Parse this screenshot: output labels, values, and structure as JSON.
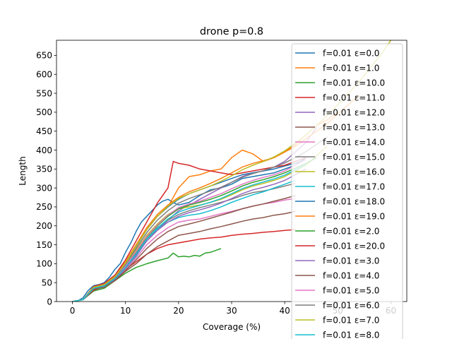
{
  "chart_data": {
    "type": "line",
    "title": "drone p=0.8",
    "xlabel": "Coverage (%)",
    "ylabel": "Length",
    "xlim": [
      -3,
      63
    ],
    "ylim": [
      0,
      690
    ],
    "xticks": [
      0,
      10,
      20,
      30,
      40,
      50,
      60
    ],
    "yticks": [
      0,
      50,
      100,
      150,
      200,
      250,
      300,
      350,
      400,
      450,
      500,
      550,
      600,
      650
    ],
    "grid": false,
    "legend_position": "upper right",
    "series": [
      {
        "name": "f=0.01 ε=0.0",
        "color": "#1f77b4",
        "x": [
          0,
          1,
          2,
          3,
          4,
          5,
          6,
          7,
          8,
          9,
          10,
          11,
          12,
          13,
          14,
          15,
          16,
          17,
          18,
          19,
          20,
          22,
          24,
          26,
          28,
          30,
          32,
          34,
          36,
          38,
          40,
          42,
          44
        ],
        "y": [
          0,
          2,
          10,
          30,
          42,
          45,
          50,
          65,
          85,
          100,
          130,
          155,
          185,
          210,
          225,
          240,
          255,
          265,
          270,
          262,
          255,
          262,
          280,
          295,
          300,
          310,
          325,
          330,
          335,
          340,
          350,
          360,
          380
        ]
      },
      {
        "name": "f=0.01 ε=1.0",
        "color": "#ff7f0e",
        "x": [
          0,
          2,
          4,
          6,
          8,
          10,
          12,
          14,
          16,
          18,
          20,
          22,
          24,
          26,
          28,
          30,
          32,
          34,
          36,
          38,
          40,
          42,
          44,
          46,
          48,
          50
        ],
        "y": [
          0,
          5,
          40,
          45,
          65,
          95,
          150,
          190,
          225,
          250,
          300,
          330,
          335,
          345,
          350,
          380,
          400,
          390,
          370,
          380,
          395,
          415,
          440,
          465,
          480,
          500
        ]
      },
      {
        "name": "f=0.01 ε=10.0",
        "color": "#2ca02c",
        "x": [
          0,
          2,
          4,
          6,
          8,
          10,
          12,
          14,
          16,
          18,
          19,
          20,
          21,
          22,
          23,
          24,
          25,
          26,
          27,
          28
        ],
        "y": [
          0,
          5,
          28,
          35,
          55,
          75,
          90,
          100,
          108,
          115,
          128,
          118,
          120,
          118,
          122,
          120,
          128,
          130,
          135,
          140
        ]
      },
      {
        "name": "f=0.01 ε=11.0",
        "color": "#d62728",
        "x": [
          0,
          2,
          4,
          6,
          8,
          10,
          12,
          14,
          16,
          18,
          20,
          22,
          24,
          26,
          28,
          30,
          32,
          34,
          36,
          38,
          40,
          42
        ],
        "y": [
          0,
          5,
          30,
          40,
          60,
          85,
          105,
          125,
          140,
          150,
          155,
          160,
          165,
          168,
          170,
          175,
          178,
          180,
          183,
          185,
          188,
          190
        ]
      },
      {
        "name": "f=0.01 ε=12.0",
        "color": "#9467bd",
        "x": [
          0,
          2,
          4,
          6,
          8,
          10,
          12,
          14,
          16,
          18,
          20,
          22,
          24,
          26,
          28,
          30,
          32,
          34,
          36,
          38,
          40,
          42,
          44,
          46
        ],
        "y": [
          0,
          5,
          38,
          42,
          60,
          90,
          130,
          165,
          190,
          215,
          240,
          255,
          270,
          285,
          300,
          315,
          330,
          340,
          345,
          355,
          370,
          395,
          420,
          460
        ]
      },
      {
        "name": "f=0.01 ε=13.0",
        "color": "#8c564b",
        "x": [
          0,
          2,
          4,
          6,
          8,
          10,
          12,
          14,
          16,
          18,
          20,
          22,
          24,
          26,
          28,
          30,
          32,
          34,
          36,
          38,
          40,
          42
        ],
        "y": [
          0,
          5,
          32,
          38,
          55,
          80,
          100,
          125,
          145,
          160,
          175,
          180,
          185,
          192,
          198,
          205,
          212,
          218,
          222,
          228,
          232,
          238
        ]
      },
      {
        "name": "f=0.01 ε=14.0",
        "color": "#e377c2",
        "x": [
          0,
          2,
          4,
          6,
          8,
          10,
          12,
          14,
          16,
          18,
          20,
          22,
          24,
          26,
          28,
          30,
          32,
          34,
          36,
          38,
          40,
          42
        ],
        "y": [
          0,
          5,
          33,
          40,
          58,
          85,
          115,
          150,
          175,
          195,
          210,
          215,
          218,
          225,
          232,
          238,
          245,
          252,
          258,
          262,
          268,
          272
        ]
      },
      {
        "name": "f=0.01 ε=15.0",
        "color": "#7f7f7f",
        "x": [
          0,
          2,
          4,
          6,
          8,
          10,
          12,
          14,
          16,
          18,
          20,
          22,
          24,
          26,
          28,
          30,
          32,
          34,
          36,
          38,
          40,
          42
        ],
        "y": [
          0,
          5,
          35,
          40,
          60,
          90,
          125,
          165,
          195,
          215,
          230,
          240,
          248,
          255,
          262,
          270,
          280,
          288,
          292,
          298,
          305,
          312
        ]
      },
      {
        "name": "f=0.01 ε=16.0",
        "color": "#bcbd22",
        "x": [
          0,
          2,
          4,
          6,
          8,
          10,
          12,
          14,
          16,
          18,
          20,
          22,
          24,
          26,
          28,
          30,
          32,
          34,
          36,
          38,
          40,
          42,
          44,
          46,
          48
        ],
        "y": [
          0,
          5,
          36,
          42,
          62,
          95,
          135,
          175,
          205,
          230,
          245,
          250,
          255,
          262,
          270,
          282,
          295,
          305,
          312,
          320,
          330,
          345,
          360,
          385,
          410
        ]
      },
      {
        "name": "f=0.01 ε=17.0",
        "color": "#17becf",
        "x": [
          0,
          2,
          4,
          6,
          8,
          10,
          12,
          14,
          16,
          18,
          20,
          22,
          24,
          26,
          28,
          30,
          32,
          34,
          36,
          38,
          40,
          42
        ],
        "y": [
          0,
          5,
          34,
          40,
          60,
          88,
          120,
          160,
          190,
          210,
          222,
          228,
          232,
          240,
          250,
          262,
          272,
          282,
          290,
          300,
          310,
          320
        ]
      },
      {
        "name": "f=0.01 ε=18.0",
        "color": "#1f77b4",
        "x": [
          0,
          2,
          4,
          6,
          8,
          10,
          12,
          14,
          16,
          18,
          20,
          22,
          24,
          26,
          28,
          30,
          32,
          34,
          36,
          38,
          40,
          42,
          44
        ],
        "y": [
          0,
          5,
          38,
          45,
          65,
          100,
          145,
          190,
          225,
          250,
          270,
          285,
          295,
          305,
          315,
          325,
          335,
          340,
          345,
          350,
          358,
          365,
          375
        ]
      },
      {
        "name": "f=0.01 ε=19.0",
        "color": "#ff7f0e",
        "x": [
          0,
          2,
          4,
          6,
          8,
          10,
          12,
          14,
          16,
          18,
          20,
          22,
          24,
          26,
          28,
          30,
          32,
          34,
          36,
          38,
          40,
          42,
          44,
          46,
          48,
          50,
          52,
          54
        ],
        "y": [
          0,
          5,
          40,
          46,
          68,
          105,
          150,
          195,
          230,
          255,
          275,
          290,
          300,
          312,
          325,
          340,
          355,
          365,
          372,
          380,
          395,
          410,
          430,
          450,
          470,
          495,
          520,
          545
        ]
      },
      {
        "name": "f=0.01 ε=2.0",
        "color": "#2ca02c",
        "x": [
          0,
          2,
          4,
          6,
          8,
          10,
          12,
          14,
          16,
          18,
          20,
          22,
          24,
          26,
          28,
          30,
          32,
          34,
          36,
          38,
          40,
          42,
          44,
          46
        ],
        "y": [
          0,
          5,
          36,
          42,
          62,
          92,
          130,
          170,
          200,
          225,
          245,
          255,
          262,
          270,
          280,
          292,
          305,
          315,
          322,
          330,
          340,
          352,
          365,
          380
        ]
      },
      {
        "name": "f=0.01 ε=20.0",
        "color": "#d62728",
        "x": [
          0,
          2,
          4,
          6,
          8,
          10,
          12,
          14,
          16,
          18,
          19,
          20,
          22,
          24,
          26,
          28,
          30,
          32,
          34,
          36,
          38,
          40,
          42,
          44
        ],
        "y": [
          0,
          5,
          40,
          48,
          70,
          110,
          160,
          210,
          260,
          300,
          370,
          365,
          360,
          350,
          345,
          340,
          335,
          340,
          345,
          350,
          355,
          360,
          370,
          380
        ]
      },
      {
        "name": "f=0.01 ε=3.0",
        "color": "#9467bd",
        "x": [
          0,
          2,
          4,
          6,
          8,
          10,
          12,
          14,
          16,
          18,
          20,
          22,
          24,
          26,
          28,
          30,
          32,
          34,
          36,
          38,
          40,
          42,
          44
        ],
        "y": [
          0,
          5,
          35,
          40,
          58,
          88,
          122,
          160,
          188,
          210,
          225,
          235,
          242,
          250,
          260,
          272,
          285,
          295,
          302,
          310,
          320,
          335,
          350
        ]
      },
      {
        "name": "f=0.01 ε=4.0",
        "color": "#8c564b",
        "x": [
          0,
          2,
          4,
          6,
          8,
          10,
          12,
          14,
          16,
          18,
          20,
          22,
          24,
          26,
          28,
          30,
          32,
          34,
          36,
          38,
          40,
          42
        ],
        "y": [
          0,
          5,
          33,
          38,
          56,
          82,
          110,
          140,
          165,
          185,
          198,
          205,
          212,
          220,
          228,
          236,
          245,
          252,
          258,
          265,
          272,
          280
        ]
      },
      {
        "name": "f=0.01 ε=5.0",
        "color": "#e377c2",
        "x": [
          0,
          2,
          4,
          6,
          8,
          10,
          12,
          14,
          16,
          18,
          20,
          22,
          24,
          26,
          28,
          30,
          32,
          34,
          36,
          38,
          40,
          42,
          44
        ],
        "y": [
          0,
          5,
          36,
          42,
          62,
          94,
          132,
          172,
          202,
          228,
          248,
          258,
          265,
          275,
          285,
          298,
          310,
          320,
          328,
          335,
          345,
          360,
          375
        ]
      },
      {
        "name": "f=0.01 ε=6.0",
        "color": "#7f7f7f",
        "x": [
          0,
          2,
          4,
          6,
          8,
          10,
          12,
          14,
          16,
          18,
          20,
          22,
          24,
          26,
          28,
          30,
          32,
          34,
          36,
          38,
          40,
          42,
          44,
          46,
          48
        ],
        "y": [
          0,
          5,
          37,
          44,
          64,
          98,
          140,
          182,
          215,
          240,
          260,
          272,
          282,
          292,
          302,
          315,
          328,
          338,
          346,
          355,
          366,
          380,
          396,
          415,
          435
        ]
      },
      {
        "name": "f=0.01 ε=7.0",
        "color": "#bcbd22",
        "x": [
          0,
          2,
          4,
          6,
          8,
          10,
          12,
          14,
          16,
          18,
          20,
          22,
          24,
          26,
          28,
          30,
          32,
          34,
          36,
          38,
          40,
          42,
          44,
          46,
          48,
          50,
          52,
          54,
          56,
          58,
          60
        ],
        "y": [
          0,
          5,
          38,
          45,
          66,
          102,
          146,
          190,
          225,
          252,
          272,
          285,
          295,
          305,
          318,
          332,
          348,
          360,
          370,
          382,
          398,
          418,
          440,
          465,
          492,
          520,
          550,
          580,
          615,
          650,
          690
        ]
      },
      {
        "name": "f=0.01 ε=8.0",
        "color": "#17becf",
        "x": [
          0,
          2,
          4,
          6,
          8,
          10,
          12,
          14,
          16,
          18,
          20,
          22,
          24,
          26,
          28,
          30,
          32,
          34,
          36,
          38,
          40,
          42,
          44
        ],
        "y": [
          0,
          5,
          35,
          41,
          60,
          90,
          126,
          165,
          194,
          218,
          236,
          246,
          254,
          262,
          272,
          285,
          298,
          308,
          316,
          324,
          334,
          348,
          362
        ]
      }
    ]
  }
}
